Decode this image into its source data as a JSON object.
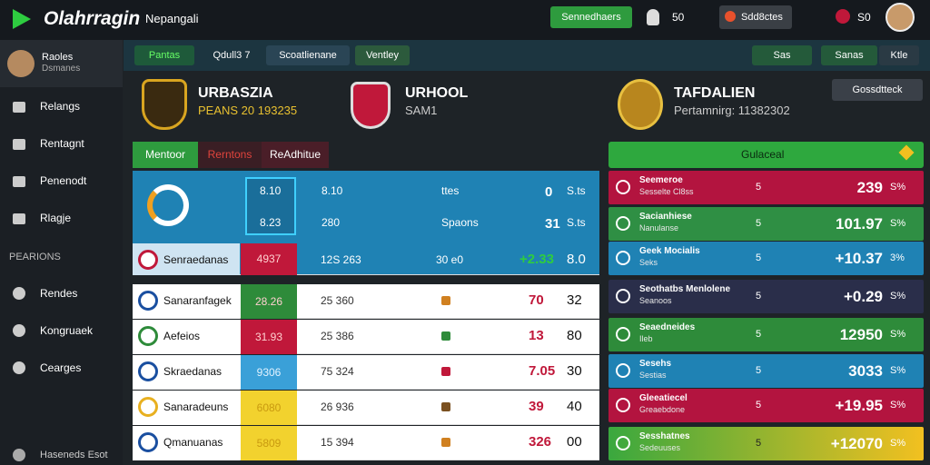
{
  "topbar": {
    "logo": "Olahrragin",
    "nav": "Nepangali",
    "button": "Sennedhaers",
    "count": "50",
    "badge": "Sdd8ctes",
    "score": "S0"
  },
  "sidebar": {
    "user": {
      "name": "Raoles",
      "role": "Dsmanes"
    },
    "items": [
      "Relangs",
      "Rentagnt",
      "Penenodt",
      "Rlagje"
    ],
    "section": "PEARIONS",
    "items2": [
      "Rendes",
      "Kongruaek",
      "Cearges"
    ],
    "footer": "Haseneds Esot"
  },
  "toolbar": {
    "tabs": [
      "Pantas",
      "Qdull3 7",
      "Scoatlienane",
      "Ventley"
    ],
    "right": [
      "Sas",
      "Sanas",
      "Ktle"
    ]
  },
  "header": {
    "teams": [
      {
        "name": "URBASZIA",
        "sub": "PEANS 20 193235"
      },
      {
        "name": "URHOOL",
        "sub": "SAM1"
      },
      {
        "name": "TAFDALIEN",
        "sub": "Pertamnirg: 11382302"
      }
    ],
    "button": "Gossdtteck"
  },
  "tabs": [
    "Mentoor",
    "Rerntons",
    "ReAdhitue"
  ],
  "table": {
    "summary": [
      [
        "8.10",
        "8.10",
        "ttes",
        "0",
        "S.ts"
      ],
      [
        "8.23",
        "280",
        "Spaons",
        "31",
        "S.ts"
      ]
    ],
    "rows": [
      [
        "Senraedanas",
        "4937",
        "12S 263",
        "30 e0",
        "+2.33",
        "8.0"
      ],
      [
        "Sanaranfagek",
        "28.26",
        "25 360",
        "",
        "70",
        "32"
      ],
      [
        "Aefeios",
        "31.93",
        "25 386",
        "",
        "13",
        "80"
      ],
      [
        "Skraedanas",
        "9306",
        "75 324",
        "",
        "7.05",
        "30"
      ],
      [
        "Sanaradeuns",
        "6080",
        "26 936",
        "",
        "39",
        "40"
      ],
      [
        "Qmanuanas",
        "5809",
        "15 394",
        "",
        "326",
        "00"
      ]
    ]
  },
  "panel": {
    "title": "Gulaceal",
    "rows": [
      [
        "Seemeroe",
        "Sesselte Cl8ss",
        "5",
        "239",
        "S%"
      ],
      [
        "Sacianhiese",
        "Nanulanse",
        "5",
        "101.97",
        "S%"
      ],
      [
        "Geek Mocialis",
        "Seks",
        "5",
        "+10.37",
        "3%"
      ],
      [
        "Seothatbs Menlolene",
        "Seanoos",
        "5",
        "+0.29",
        "S%"
      ],
      [
        "Seaedneides",
        "Ileb",
        "5",
        "12950",
        "S%"
      ],
      [
        "Sesehs",
        "Sestias",
        "5",
        "3033",
        "S%"
      ],
      [
        "Gleeatiecel",
        "Greaebdone",
        "5",
        "+19.95",
        "S%"
      ],
      [
        "Sesshatnes",
        "Sedeuuses",
        "5",
        "+12070",
        "S%"
      ]
    ]
  }
}
